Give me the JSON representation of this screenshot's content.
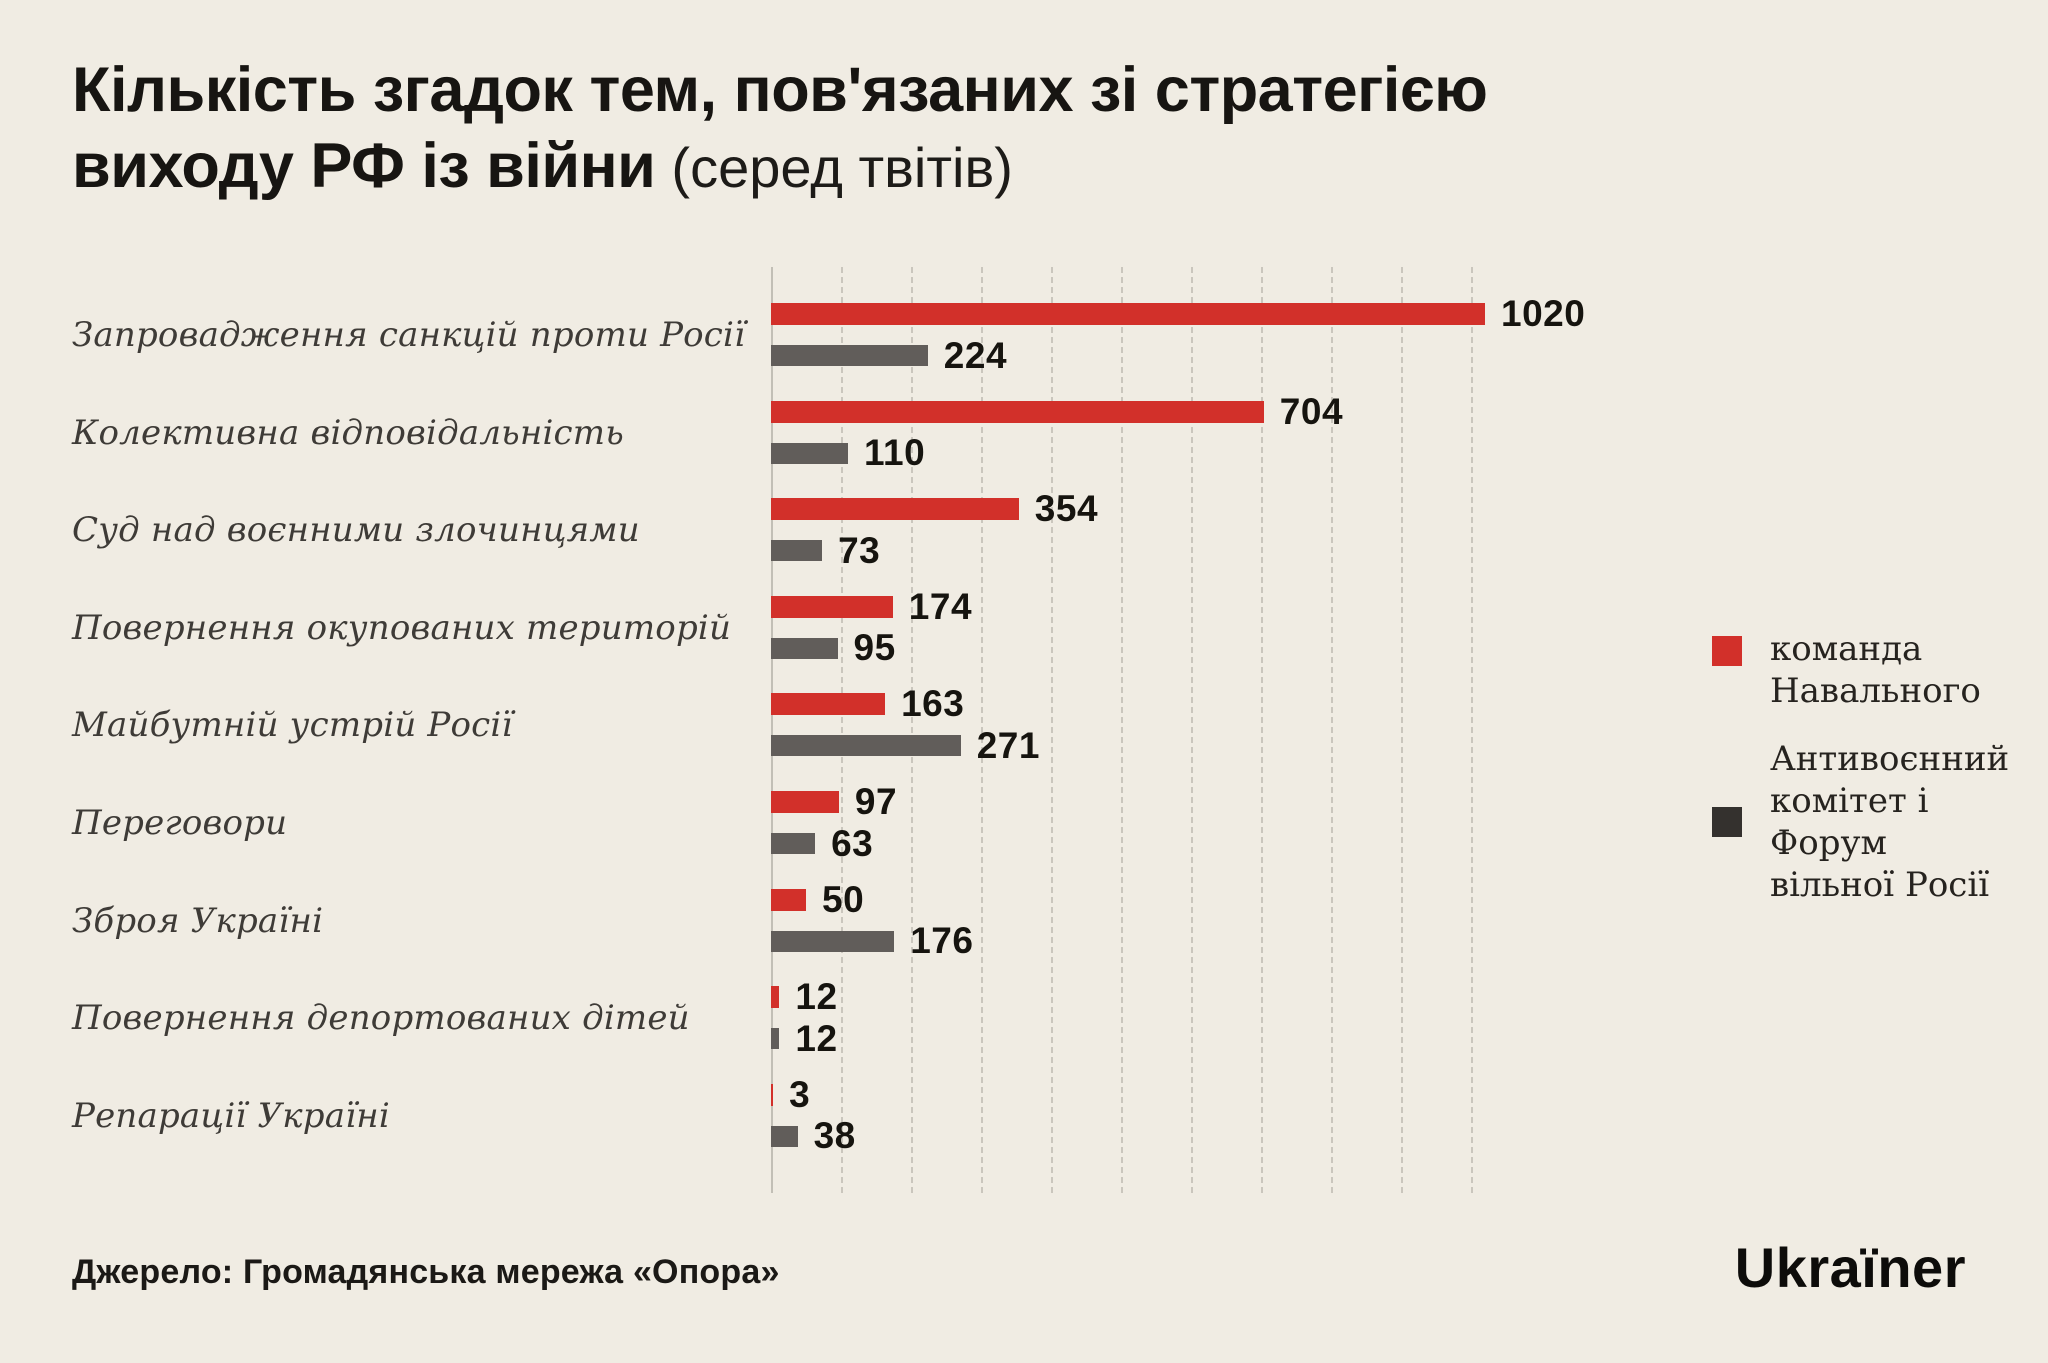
{
  "page": {
    "background_color": "#f0ece3",
    "source_note": "Джерело: Громадянська мережа «Опора»",
    "logo_text": "Ukraïner"
  },
  "title": {
    "line1": "Кількість згадок тем, пов'язаних зі стратегією",
    "line2": "виходу РФ із війни",
    "note": "(серед твітів)"
  },
  "legend": {
    "items": [
      {
        "name": "navalny-team",
        "label": "команда\nНавального",
        "color": "#d2302a",
        "align": "top"
      },
      {
        "name": "antiwar-committee-forum",
        "label": "Антивоєнний\nкомітет і Форум\nвільної Росії",
        "color": "#34312e",
        "align": "center"
      }
    ]
  },
  "chart_data": {
    "type": "bar",
    "orientation": "horizontal",
    "title": "Кількість згадок тем, пов'язаних зі стратегією виходу РФ із війни (серед твітів)",
    "categories": [
      "Запровадження санкцій проти Росії",
      "Колективна відповідальність",
      "Суд над воєнними злочинцями",
      "Повернення окупованих територій",
      "Майбутній устрій Росії",
      "Переговори",
      "Зброя Україні",
      "Повернення депортованих дітей",
      "Репарації Україні"
    ],
    "series": [
      {
        "name": "команда Навального",
        "color": "#d2302a",
        "values": [
          1020,
          704,
          354,
          174,
          163,
          97,
          50,
          12,
          3
        ]
      },
      {
        "name": "Антивоєнний комітет і Форум вільної Росії",
        "color": "#615d5a",
        "values": [
          224,
          110,
          73,
          95,
          271,
          63,
          176,
          12,
          38
        ]
      }
    ],
    "xlim": [
      0,
      1050
    ],
    "gridline_interval": 100,
    "grid": "dashed-vertical",
    "legend_position": "right",
    "value_labels": "end-of-bar",
    "source": "Громадянська мережа «Опора»"
  }
}
